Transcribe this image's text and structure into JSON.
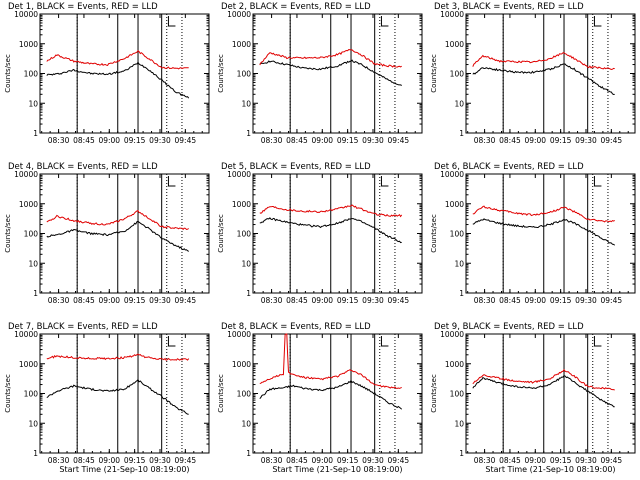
{
  "figure": {
    "background": "#ffffff",
    "colors": {
      "events": "#000000",
      "lld": "#e00000",
      "axes": "#000000"
    }
  },
  "chart_data": [
    {
      "type": "line",
      "title": "Det 1, BLACK = Events, RED = LLD",
      "ylabel": "Counts/sec",
      "xlabel": "",
      "yscale": "log",
      "ylim": [
        1,
        10000
      ],
      "yticks": [
        "1",
        "10",
        "100",
        "1000",
        "10000"
      ],
      "xticks": [
        "08:30",
        "08:45",
        "09:00",
        "09:15",
        "09:30",
        "09:45"
      ],
      "x_units": "minutes after 08:19:00",
      "xlim": [
        0,
        100
      ],
      "solid_vlines": [
        22,
        46,
        58,
        72
      ],
      "dotted_vlines": [
        22,
        75,
        84
      ],
      "series": [
        {
          "name": "Events",
          "color": "#000000",
          "x": [
            4,
            10,
            20,
            30,
            40,
            50,
            58,
            64,
            72,
            80,
            88
          ],
          "y": [
            90,
            95,
            130,
            100,
            95,
            120,
            230,
            140,
            60,
            25,
            15
          ]
        },
        {
          "name": "LLD",
          "color": "#e00000",
          "x": [
            4,
            10,
            20,
            30,
            40,
            50,
            58,
            64,
            72,
            80,
            88
          ],
          "y": [
            260,
            420,
            260,
            210,
            200,
            320,
            560,
            330,
            160,
            150,
            150
          ]
        }
      ]
    },
    {
      "type": "line",
      "title": "Det 2, BLACK = Events, RED = LLD",
      "ylabel": "Counts/sec",
      "xlabel": "",
      "yscale": "log",
      "ylim": [
        1,
        10000
      ],
      "yticks": [
        "1",
        "10",
        "100",
        "1000",
        "10000"
      ],
      "xticks": [
        "08:30",
        "08:45",
        "09:00",
        "09:15",
        "09:30",
        "09:45"
      ],
      "x_units": "minutes after 08:19:00",
      "xlim": [
        0,
        100
      ],
      "solid_vlines": [
        22,
        46,
        58,
        72
      ],
      "dotted_vlines": [
        22,
        75,
        84
      ],
      "series": [
        {
          "name": "Events",
          "color": "#000000",
          "x": [
            4,
            10,
            20,
            30,
            40,
            50,
            58,
            64,
            72,
            80,
            88
          ],
          "y": [
            200,
            260,
            200,
            150,
            140,
            180,
            270,
            200,
            110,
            60,
            40
          ]
        },
        {
          "name": "LLD",
          "color": "#e00000",
          "x": [
            4,
            10,
            20,
            30,
            40,
            50,
            58,
            64,
            72,
            80,
            88
          ],
          "y": [
            200,
            500,
            340,
            330,
            340,
            430,
            650,
            430,
            210,
            180,
            170
          ]
        }
      ]
    },
    {
      "type": "line",
      "title": "Det 3, BLACK = Events, RED = LLD",
      "ylabel": "Counts/sec",
      "xlabel": "",
      "yscale": "log",
      "ylim": [
        1,
        10000
      ],
      "yticks": [
        "1",
        "10",
        "100",
        "1000",
        "10000"
      ],
      "xticks": [
        "08:30",
        "08:45",
        "09:00",
        "09:15",
        "09:30",
        "09:45"
      ],
      "x_units": "minutes after 08:19:00",
      "xlim": [
        0,
        100
      ],
      "solid_vlines": [
        22,
        46,
        58,
        72
      ],
      "dotted_vlines": [
        22,
        75,
        84
      ],
      "series": [
        {
          "name": "Events",
          "color": "#000000",
          "x": [
            4,
            10,
            20,
            30,
            40,
            50,
            58,
            64,
            72,
            80,
            88
          ],
          "y": [
            90,
            160,
            130,
            110,
            110,
            140,
            210,
            140,
            70,
            35,
            20
          ]
        },
        {
          "name": "LLD",
          "color": "#e00000",
          "x": [
            4,
            10,
            20,
            30,
            40,
            50,
            58,
            64,
            72,
            80,
            88
          ],
          "y": [
            180,
            390,
            260,
            250,
            240,
            320,
            500,
            320,
            170,
            150,
            140
          ]
        }
      ]
    },
    {
      "type": "line",
      "title": "Det 4, BLACK = Events, RED = LLD",
      "ylabel": "Counts/sec",
      "xlabel": "",
      "yscale": "log",
      "ylim": [
        1,
        10000
      ],
      "yticks": [
        "1",
        "10",
        "100",
        "1000",
        "10000"
      ],
      "xticks": [
        "08:30",
        "08:45",
        "09:00",
        "09:15",
        "09:30",
        "09:45"
      ],
      "x_units": "minutes after 08:19:00",
      "xlim": [
        0,
        100
      ],
      "solid_vlines": [
        22,
        46,
        58,
        72
      ],
      "dotted_vlines": [
        22,
        75,
        84
      ],
      "series": [
        {
          "name": "Events",
          "color": "#000000",
          "x": [
            4,
            10,
            20,
            30,
            40,
            50,
            58,
            64,
            72,
            80,
            88
          ],
          "y": [
            80,
            90,
            130,
            100,
            90,
            120,
            250,
            150,
            70,
            40,
            25
          ]
        },
        {
          "name": "LLD",
          "color": "#e00000",
          "x": [
            4,
            10,
            20,
            30,
            40,
            50,
            58,
            64,
            72,
            80,
            88
          ],
          "y": [
            230,
            380,
            270,
            220,
            200,
            310,
            560,
            340,
            170,
            150,
            140
          ]
        }
      ]
    },
    {
      "type": "line",
      "title": "Det 5, BLACK = Events, RED = LLD",
      "ylabel": "Counts/sec",
      "xlabel": "",
      "yscale": "log",
      "ylim": [
        1,
        10000
      ],
      "yticks": [
        "1",
        "10",
        "100",
        "1000",
        "10000"
      ],
      "xticks": [
        "08:30",
        "08:45",
        "09:00",
        "09:15",
        "09:30",
        "09:45"
      ],
      "x_units": "minutes after 08:19:00",
      "xlim": [
        0,
        100
      ],
      "solid_vlines": [
        22,
        46,
        58,
        72
      ],
      "dotted_vlines": [
        22,
        75,
        84
      ],
      "series": [
        {
          "name": "Events",
          "color": "#000000",
          "x": [
            4,
            10,
            20,
            30,
            40,
            50,
            58,
            64,
            72,
            80,
            88
          ],
          "y": [
            230,
            320,
            240,
            190,
            170,
            220,
            330,
            250,
            150,
            80,
            50
          ]
        },
        {
          "name": "LLD",
          "color": "#e00000",
          "x": [
            4,
            10,
            20,
            30,
            40,
            50,
            58,
            64,
            72,
            80,
            88
          ],
          "y": [
            480,
            820,
            640,
            560,
            540,
            660,
            880,
            660,
            450,
            400,
            400
          ]
        }
      ]
    },
    {
      "type": "line",
      "title": "Det 6, BLACK = Events, RED = LLD",
      "ylabel": "Counts/sec",
      "xlabel": "",
      "yscale": "log",
      "ylim": [
        1,
        10000
      ],
      "yticks": [
        "1",
        "10",
        "100",
        "1000",
        "10000"
      ],
      "xticks": [
        "08:30",
        "08:45",
        "09:00",
        "09:15",
        "09:30",
        "09:45"
      ],
      "x_units": "minutes after 08:19:00",
      "xlim": [
        0,
        100
      ],
      "solid_vlines": [
        22,
        46,
        58,
        72
      ],
      "dotted_vlines": [
        22,
        75,
        84
      ],
      "series": [
        {
          "name": "Events",
          "color": "#000000",
          "x": [
            4,
            10,
            20,
            30,
            40,
            50,
            58,
            64,
            72,
            80,
            88
          ],
          "y": [
            210,
            300,
            220,
            180,
            160,
            200,
            300,
            220,
            130,
            70,
            40
          ]
        },
        {
          "name": "LLD",
          "color": "#e00000",
          "x": [
            4,
            10,
            20,
            30,
            40,
            50,
            58,
            64,
            72,
            80,
            88
          ],
          "y": [
            450,
            800,
            600,
            480,
            420,
            520,
            760,
            540,
            300,
            260,
            260
          ]
        }
      ]
    },
    {
      "type": "line",
      "title": "Det 7, BLACK = Events, RED = LLD",
      "ylabel": "Counts/sec",
      "xlabel": "Start Time (21-Sep-10 08:19:00)",
      "yscale": "log",
      "ylim": [
        1,
        10000
      ],
      "yticks": [
        "1",
        "10",
        "100",
        "1000",
        "10000"
      ],
      "xticks": [
        "08:30",
        "08:45",
        "09:00",
        "09:15",
        "09:30",
        "09:45"
      ],
      "x_units": "minutes after 08:19:00",
      "xlim": [
        0,
        100
      ],
      "solid_vlines": [
        22,
        46,
        58,
        72
      ],
      "dotted_vlines": [
        22,
        75,
        84
      ],
      "series": [
        {
          "name": "Events",
          "color": "#000000",
          "x": [
            4,
            10,
            20,
            30,
            40,
            50,
            58,
            64,
            72,
            80,
            88
          ],
          "y": [
            75,
            120,
            180,
            140,
            120,
            140,
            280,
            160,
            80,
            35,
            20
          ]
        },
        {
          "name": "LLD",
          "color": "#e00000",
          "x": [
            4,
            10,
            20,
            30,
            40,
            50,
            58,
            64,
            72,
            80,
            88
          ],
          "y": [
            1500,
            1800,
            1600,
            1500,
            1500,
            1600,
            2000,
            1600,
            1400,
            1400,
            1400
          ]
        }
      ]
    },
    {
      "type": "line",
      "title": "Det 8, BLACK = Events, RED = LLD",
      "ylabel": "Counts/sec",
      "xlabel": "Start Time (21-Sep-10 08:19:00)",
      "yscale": "log",
      "ylim": [
        1,
        10000
      ],
      "yticks": [
        "1",
        "10",
        "100",
        "1000",
        "10000"
      ],
      "xticks": [
        "08:30",
        "08:45",
        "09:00",
        "09:15",
        "09:30",
        "09:45"
      ],
      "x_units": "minutes after 08:19:00",
      "xlim": [
        0,
        100
      ],
      "solid_vlines": [
        22,
        46,
        58,
        72
      ],
      "dotted_vlines": [
        22,
        75,
        84
      ],
      "series": [
        {
          "name": "Events",
          "color": "#000000",
          "x": [
            4,
            10,
            20,
            21,
            24,
            30,
            40,
            50,
            58,
            64,
            72,
            80,
            88
          ],
          "y": [
            70,
            140,
            160,
            170,
            180,
            150,
            130,
            160,
            260,
            180,
            100,
            50,
            30
          ]
        },
        {
          "name": "LLD",
          "color": "#e00000",
          "x": [
            4,
            10,
            18,
            19,
            20,
            21,
            24,
            30,
            40,
            50,
            58,
            64,
            72,
            80,
            88
          ],
          "y": [
            220,
            320,
            450,
            10000,
            10000,
            500,
            420,
            350,
            300,
            380,
            620,
            420,
            200,
            160,
            150
          ]
        }
      ]
    },
    {
      "type": "line",
      "title": "Det 9, BLACK = Events, RED = LLD",
      "ylabel": "Counts/sec",
      "xlabel": "Start Time (21-Sep-10 08:19:00)",
      "yscale": "log",
      "ylim": [
        1,
        10000
      ],
      "yticks": [
        "1",
        "10",
        "100",
        "1000",
        "10000"
      ],
      "xticks": [
        "08:30",
        "08:45",
        "09:00",
        "09:15",
        "09:30",
        "09:45"
      ],
      "x_units": "minutes after 08:19:00",
      "xlim": [
        0,
        100
      ],
      "solid_vlines": [
        22,
        46,
        58,
        72
      ],
      "dotted_vlines": [
        22,
        75,
        84
      ],
      "series": [
        {
          "name": "Events",
          "color": "#000000",
          "x": [
            4,
            10,
            20,
            30,
            40,
            50,
            58,
            64,
            72,
            80,
            88
          ],
          "y": [
            160,
            330,
            220,
            170,
            150,
            200,
            400,
            240,
            120,
            60,
            35
          ]
        },
        {
          "name": "LLD",
          "color": "#e00000",
          "x": [
            4,
            10,
            20,
            30,
            40,
            50,
            58,
            64,
            72,
            80,
            88
          ],
          "y": [
            220,
            420,
            320,
            260,
            240,
            320,
            620,
            380,
            170,
            150,
            140
          ]
        }
      ]
    }
  ]
}
